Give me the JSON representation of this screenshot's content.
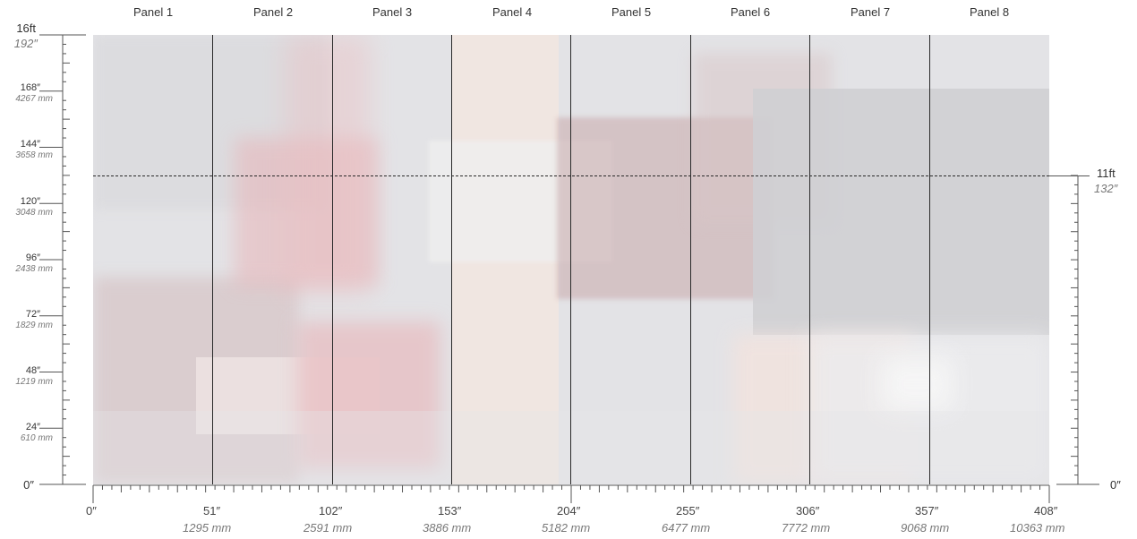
{
  "panels": [
    "Panel 1",
    "Panel 2",
    "Panel 3",
    "Panel 4",
    "Panel 5",
    "Panel 6",
    "Panel 7",
    "Panel 8"
  ],
  "left_axis": {
    "top_ft": "16ft",
    "top_in": "192″",
    "ticks": [
      {
        "in": "168″",
        "mm": "4267 mm"
      },
      {
        "in": "144″",
        "mm": "3658 mm"
      },
      {
        "in": "120″",
        "mm": "3048 mm"
      },
      {
        "in": "96″",
        "mm": "2438 mm"
      },
      {
        "in": "72″",
        "mm": "1829 mm"
      },
      {
        "in": "48″",
        "mm": "1219 mm"
      },
      {
        "in": "24″",
        "mm": "610 mm"
      }
    ],
    "zero": "0″"
  },
  "right_axis": {
    "cut_ft": "11ft",
    "cut_in": "132″",
    "zero": "0″"
  },
  "bottom_axis": {
    "zero": "0″",
    "ticks": [
      {
        "in": "51″",
        "mm": "1295 mm"
      },
      {
        "in": "102″",
        "mm": "2591 mm"
      },
      {
        "in": "153″",
        "mm": "3886 mm"
      },
      {
        "in": "204″",
        "mm": "5182 mm"
      },
      {
        "in": "255″",
        "mm": "6477 mm"
      },
      {
        "in": "306″",
        "mm": "7772 mm"
      },
      {
        "in": "357″",
        "mm": "9068 mm"
      },
      {
        "in": "408″",
        "mm": "10363 mm"
      }
    ]
  },
  "colors": {
    "mural_base": "#e3e3e6",
    "pink": "#e8b4b8",
    "rose_gray": "#c9a9ab",
    "cream": "#f1e6e0",
    "gray": "#cfcfd3"
  }
}
